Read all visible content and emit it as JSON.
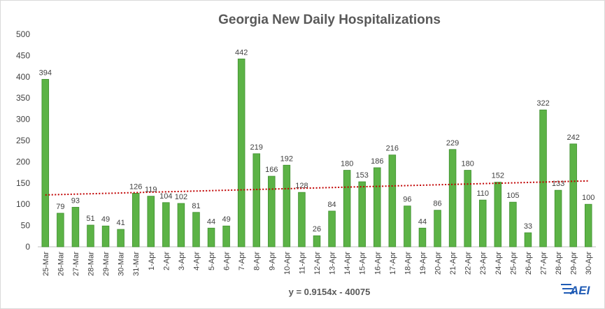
{
  "chart_data": {
    "type": "bar",
    "title": "Georgia New Daily Hospitalizations",
    "xlabel": "",
    "ylabel": "",
    "ylim": [
      0,
      500
    ],
    "yticks": [
      0,
      50,
      100,
      150,
      200,
      250,
      300,
      350,
      400,
      450,
      500
    ],
    "grid": false,
    "legend": "none",
    "categories": [
      "25-Mar",
      "26-Mar",
      "27-Mar",
      "28-Mar",
      "29-Mar",
      "30-Mar",
      "31-Mar",
      "1-Apr",
      "2-Apr",
      "3-Apr",
      "4-Apr",
      "5-Apr",
      "6-Apr",
      "7-Apr",
      "8-Apr",
      "9-Apr",
      "10-Apr",
      "11-Apr",
      "12-Apr",
      "13-Apr",
      "14-Apr",
      "15-Apr",
      "16-Apr",
      "17-Apr",
      "18-Apr",
      "19-Apr",
      "20-Apr",
      "21-Apr",
      "22-Apr",
      "23-Apr",
      "24-Apr",
      "25-Apr",
      "26-Apr",
      "27-Apr",
      "28-Apr",
      "29-Apr",
      "30-Apr"
    ],
    "values": [
      394,
      79,
      93,
      51,
      49,
      41,
      126,
      119,
      104,
      102,
      81,
      44,
      49,
      442,
      219,
      166,
      192,
      128,
      26,
      84,
      180,
      153,
      186,
      216,
      96,
      44,
      86,
      229,
      180,
      110,
      152,
      105,
      33,
      322,
      133,
      242,
      100
    ],
    "trendline": {
      "type": "linear",
      "equation": "y = 0.9154x - 40075",
      "start_value": 122,
      "end_value": 155,
      "color": "#c00000",
      "style": "dotted"
    },
    "bar_color": "#5cb346",
    "bar_border_color": "#3f8f2f"
  },
  "logo": {
    "text": "AEI",
    "color": "#1f5bb5"
  }
}
